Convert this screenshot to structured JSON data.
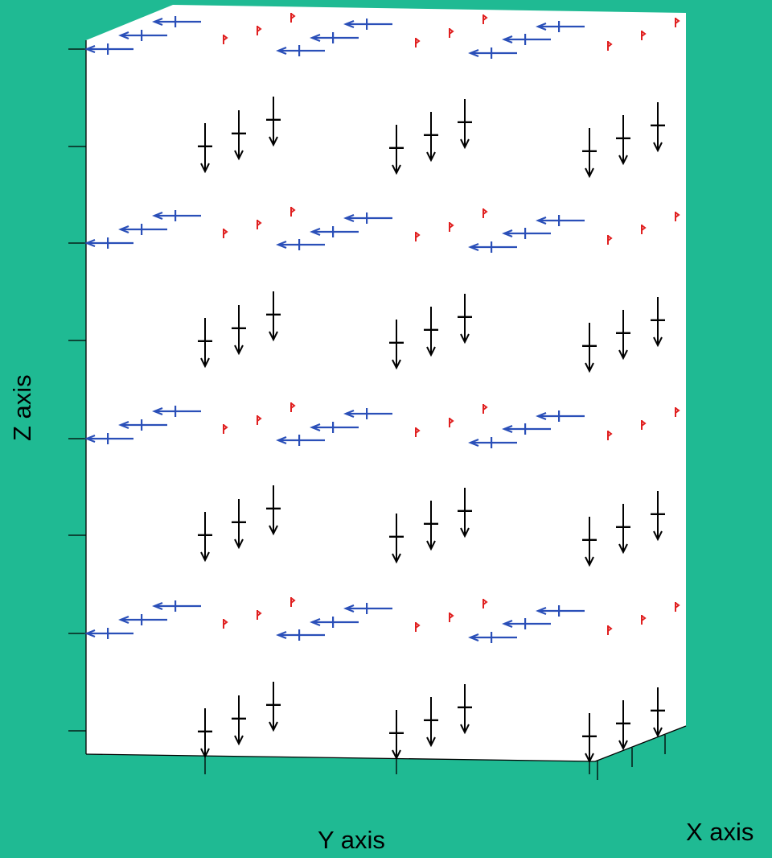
{
  "axes": {
    "x_label": "X axis",
    "y_label": "Y axis",
    "z_label": "Z axis"
  },
  "colors": {
    "background": "#1fba93",
    "box": "#ffffff",
    "blue_arrows": "#2a4fb8",
    "red_arrows": "#e02020",
    "black_arrows": "#000000"
  },
  "chart_data": {
    "type": "scatter",
    "description_kind": "3D vector field (quiver)",
    "x_ticks": 3,
    "y_ticks": 3,
    "z_ticks": 8,
    "layers": [
      {
        "z": 1,
        "vectors": "blue (-y) and red (small)"
      },
      {
        "z": 2,
        "vectors": "black (-z)"
      },
      {
        "z": 3,
        "vectors": "blue (-y) and red (small)"
      },
      {
        "z": 4,
        "vectors": "black (-z)"
      },
      {
        "z": 5,
        "vectors": "blue (-y) and red (small)"
      },
      {
        "z": 6,
        "vectors": "black (-z)"
      },
      {
        "z": 7,
        "vectors": "blue (-y) and red (small)"
      },
      {
        "z": 8,
        "vectors": "black (-z)"
      }
    ]
  }
}
